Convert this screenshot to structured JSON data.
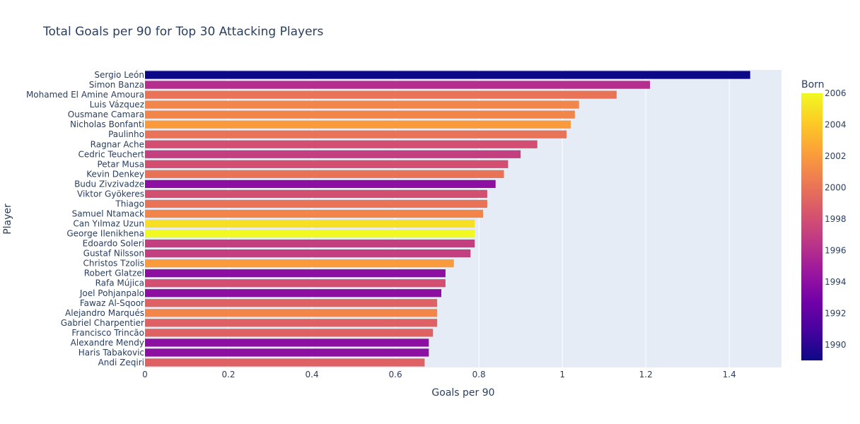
{
  "chart_data": {
    "type": "bar",
    "orientation": "horizontal",
    "title": "Total Goals per 90 for Top 30 Attacking Players",
    "xlabel": "Goals per 90",
    "ylabel": "Player",
    "xlim": [
      0,
      1.525
    ],
    "x_ticks": [
      "0",
      "0.2",
      "0.4",
      "0.6",
      "0.8",
      "1",
      "1.2",
      "1.4"
    ],
    "x_tick_values": [
      0,
      0.2,
      0.4,
      0.6,
      0.8,
      1.0,
      1.2,
      1.4
    ],
    "grid": true,
    "colorbar": {
      "title": "Born",
      "range": [
        1989,
        2006
      ],
      "tick_labels": [
        "1990",
        "1992",
        "1994",
        "1996",
        "1998",
        "2000",
        "2002",
        "2004",
        "2006"
      ],
      "tick_values": [
        1990,
        1992,
        1994,
        1996,
        1998,
        2000,
        2002,
        2004,
        2006
      ],
      "colorscale": "plasma"
    },
    "categories": [
      "Sergio León",
      "Simon Banza",
      "Mohamed El Amine Amoura",
      "Luis Vázquez",
      "Ousmane Camara",
      "Nicholas Bonfanti",
      "Paulinho",
      "Ragnar Ache",
      "Cedric Teuchert",
      "Petar Musa",
      "Kevin Denkey",
      "Budu Zivzivadze",
      "Viktor Gyökeres",
      "Thiago",
      "Samuel Ntamack",
      "Can Yılmaz Uzun",
      "George Ilenikhena",
      "Edoardo Soleri",
      "Gustaf Nilsson",
      "Christos Tzolis",
      "Robert Glatzel",
      "Rafa Mújica",
      "Joel Pohjanpalo",
      "Fawaz Al-Sqoor",
      "Alejandro Marqués",
      "Gabriel Charpentier",
      "Francisco Trincão",
      "Alexandre Mendy",
      "Haris Tabakovic",
      "Andi Zeqiri"
    ],
    "values": [
      1.45,
      1.21,
      1.13,
      1.04,
      1.03,
      1.02,
      1.01,
      0.94,
      0.9,
      0.87,
      0.86,
      0.84,
      0.82,
      0.82,
      0.81,
      0.79,
      0.79,
      0.79,
      0.78,
      0.74,
      0.72,
      0.72,
      0.71,
      0.7,
      0.7,
      0.7,
      0.69,
      0.68,
      0.68,
      0.67
    ],
    "born": [
      1989,
      1996,
      2000,
      2001,
      2001,
      2002,
      2000,
      1998,
      1997,
      1998,
      2000,
      1994,
      1998,
      2000,
      2001,
      2005,
      2006,
      1997,
      1997,
      2002,
      1994,
      1998,
      1994,
      1999,
      2001,
      1999,
      1999,
      1994,
      1994,
      1999
    ]
  }
}
